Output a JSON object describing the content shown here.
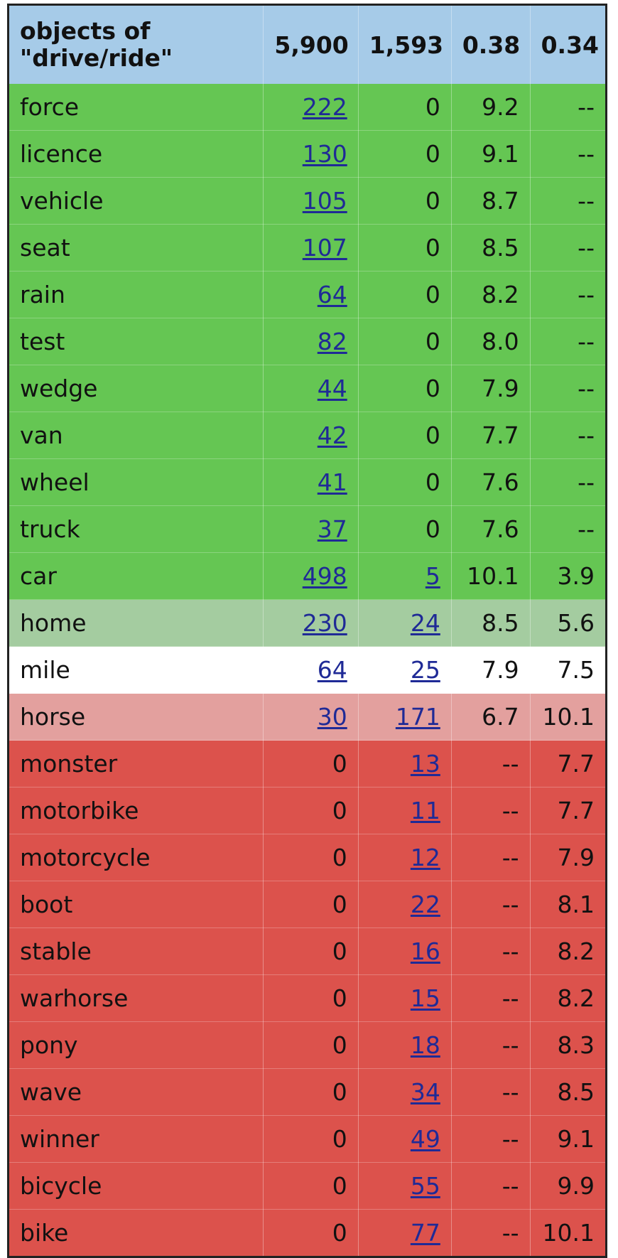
{
  "header": {
    "label": "objects of \"drive/ride\"",
    "col1": "5,900",
    "col2": "1,593",
    "col3": "0.38",
    "col4": "0.34"
  },
  "rows": [
    {
      "word": "force",
      "c1": "222",
      "c2": "0",
      "c3": "9.2",
      "c4": "--",
      "band": "green"
    },
    {
      "word": "licence",
      "c1": "130",
      "c2": "0",
      "c3": "9.1",
      "c4": "--",
      "band": "green"
    },
    {
      "word": "vehicle",
      "c1": "105",
      "c2": "0",
      "c3": "8.7",
      "c4": "--",
      "band": "green"
    },
    {
      "word": "seat",
      "c1": "107",
      "c2": "0",
      "c3": "8.5",
      "c4": "--",
      "band": "green"
    },
    {
      "word": "rain",
      "c1": "64",
      "c2": "0",
      "c3": "8.2",
      "c4": "--",
      "band": "green"
    },
    {
      "word": "test",
      "c1": "82",
      "c2": "0",
      "c3": "8.0",
      "c4": "--",
      "band": "green"
    },
    {
      "word": "wedge",
      "c1": "44",
      "c2": "0",
      "c3": "7.9",
      "c4": "--",
      "band": "green"
    },
    {
      "word": "van",
      "c1": "42",
      "c2": "0",
      "c3": "7.7",
      "c4": "--",
      "band": "green"
    },
    {
      "word": "wheel",
      "c1": "41",
      "c2": "0",
      "c3": "7.6",
      "c4": "--",
      "band": "green"
    },
    {
      "word": "truck",
      "c1": "37",
      "c2": "0",
      "c3": "7.6",
      "c4": "--",
      "band": "green"
    },
    {
      "word": "car",
      "c1": "498",
      "c2": "5",
      "c3": "10.1",
      "c4": "3.9",
      "band": "green"
    },
    {
      "word": "home",
      "c1": "230",
      "c2": "24",
      "c3": "8.5",
      "c4": "5.6",
      "band": "lightgreen"
    },
    {
      "word": "mile",
      "c1": "64",
      "c2": "25",
      "c3": "7.9",
      "c4": "7.5",
      "band": "white"
    },
    {
      "word": "horse",
      "c1": "30",
      "c2": "171",
      "c3": "6.7",
      "c4": "10.1",
      "band": "pink"
    },
    {
      "word": "monster",
      "c1": "0",
      "c2": "13",
      "c3": "--",
      "c4": "7.7",
      "band": "red"
    },
    {
      "word": "motorbike",
      "c1": "0",
      "c2": "11",
      "c3": "--",
      "c4": "7.7",
      "band": "red"
    },
    {
      "word": "motorcycle",
      "c1": "0",
      "c2": "12",
      "c3": "--",
      "c4": "7.9",
      "band": "red"
    },
    {
      "word": "boot",
      "c1": "0",
      "c2": "22",
      "c3": "--",
      "c4": "8.1",
      "band": "red"
    },
    {
      "word": "stable",
      "c1": "0",
      "c2": "16",
      "c3": "--",
      "c4": "8.2",
      "band": "red"
    },
    {
      "word": "warhorse",
      "c1": "0",
      "c2": "15",
      "c3": "--",
      "c4": "8.2",
      "band": "red"
    },
    {
      "word": "pony",
      "c1": "0",
      "c2": "18",
      "c3": "--",
      "c4": "8.3",
      "band": "red"
    },
    {
      "word": "wave",
      "c1": "0",
      "c2": "34",
      "c3": "--",
      "c4": "8.5",
      "band": "red"
    },
    {
      "word": "winner",
      "c1": "0",
      "c2": "49",
      "c3": "--",
      "c4": "9.1",
      "band": "red"
    },
    {
      "word": "bicycle",
      "c1": "0",
      "c2": "55",
      "c3": "--",
      "c4": "9.9",
      "band": "red"
    },
    {
      "word": "bike",
      "c1": "0",
      "c2": "77",
      "c3": "--",
      "c4": "10.1",
      "band": "red"
    }
  ],
  "colors": {
    "header": "#a6cbe8",
    "green": "#65c653",
    "lightgreen": "#a4cca0",
    "white": "#ffffff",
    "pink": "#e3a09e",
    "red": "#dc524c",
    "link": "#1f2a96"
  }
}
